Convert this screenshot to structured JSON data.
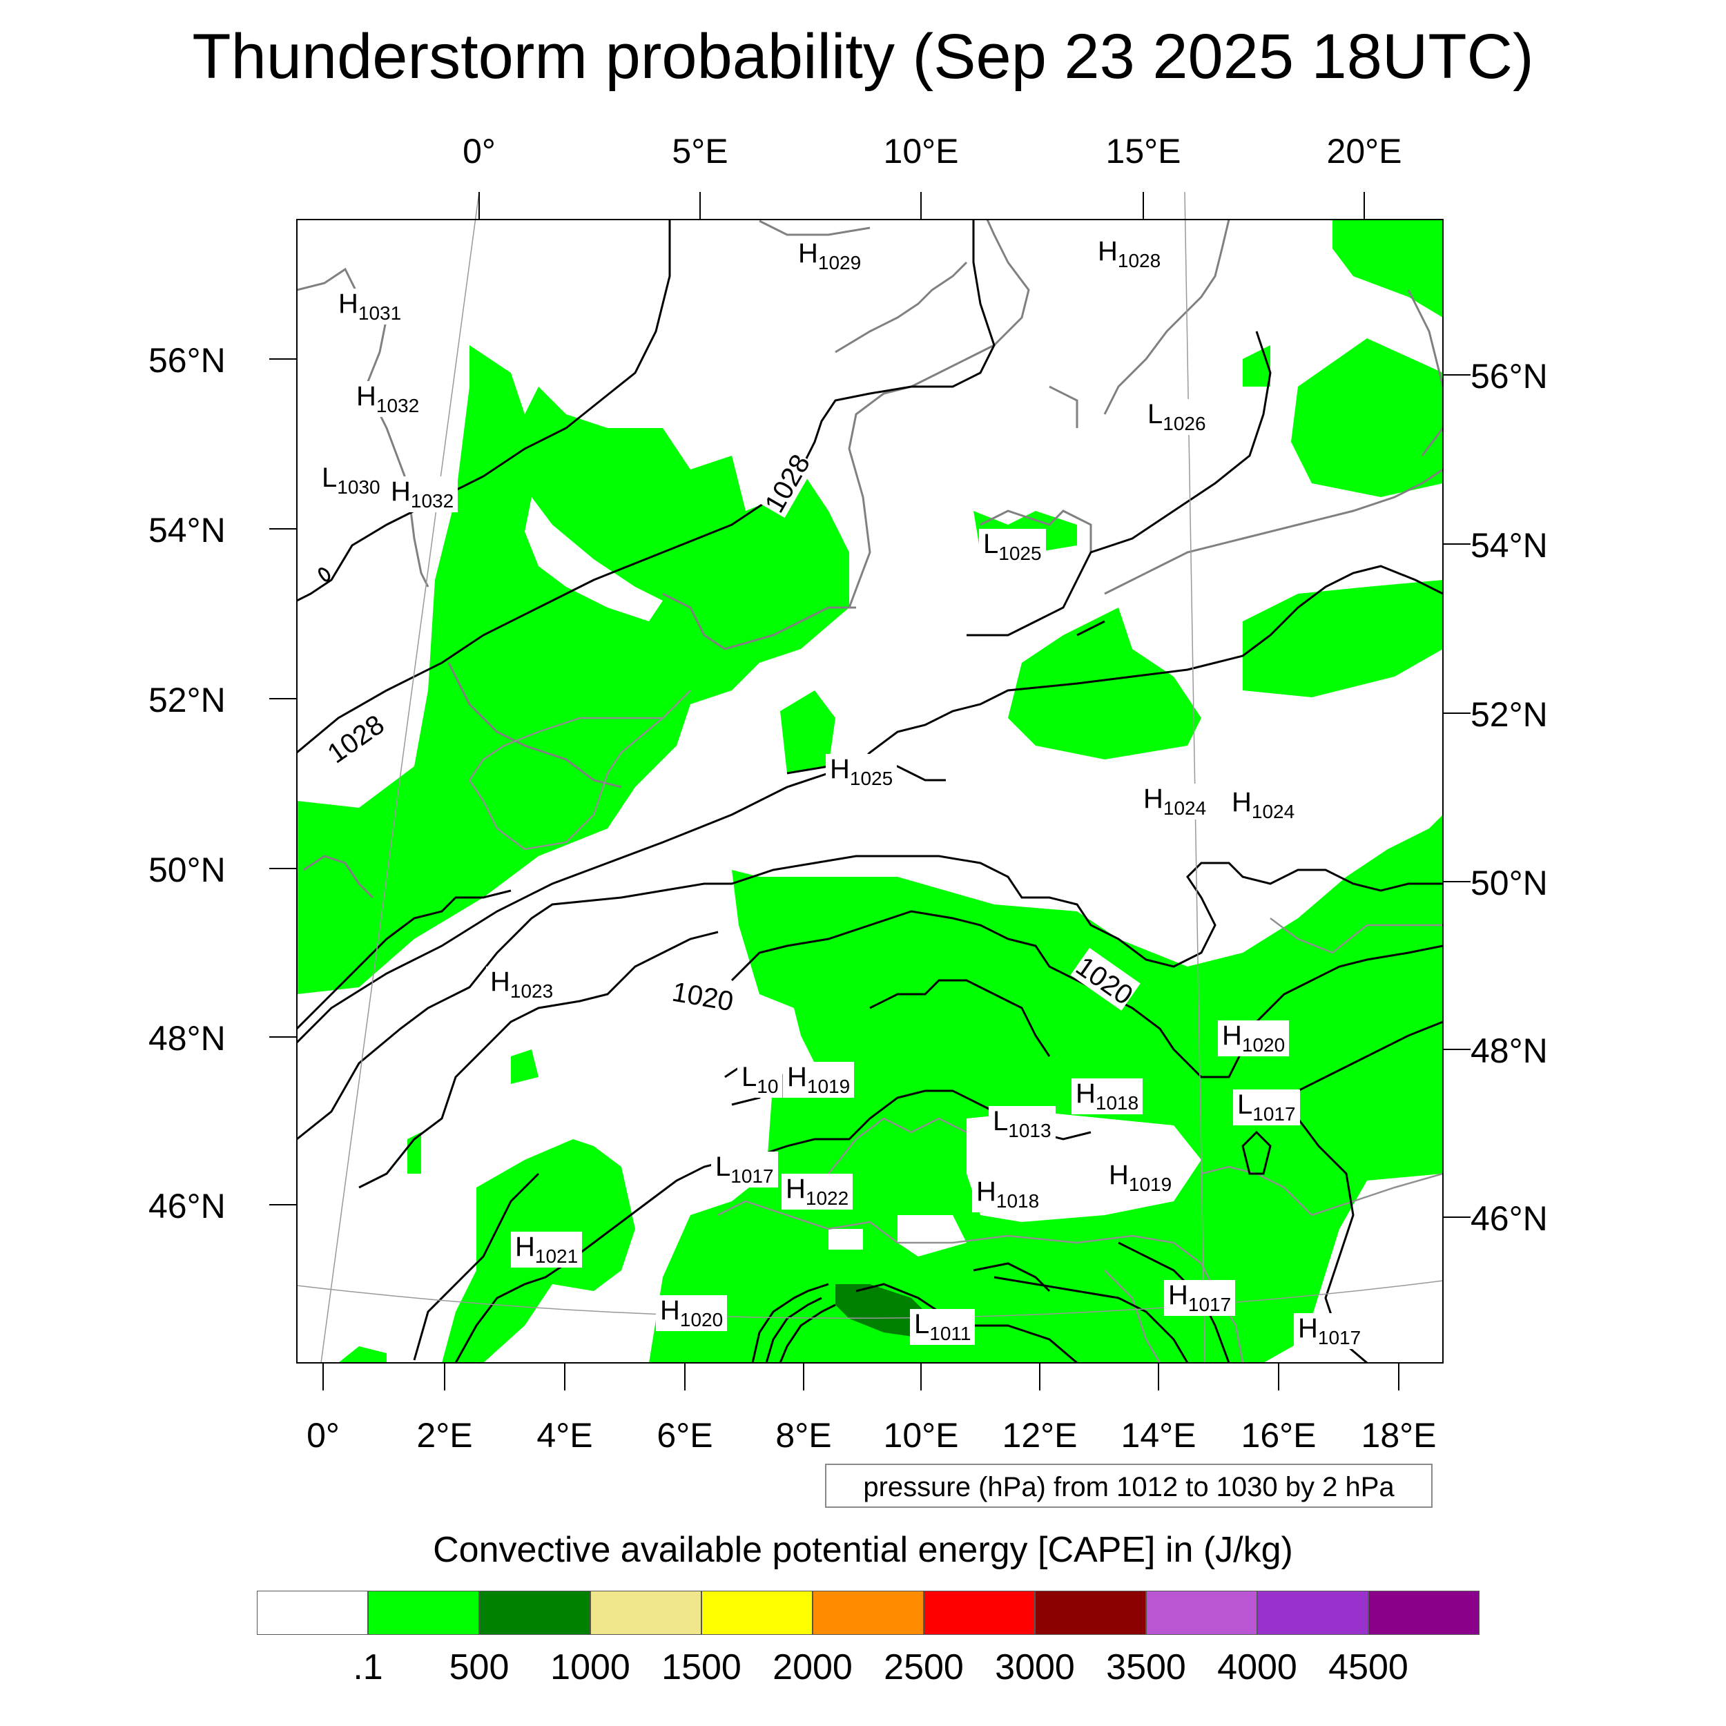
{
  "title": "Thunderstorm probability (Sep 23 2025 18UTC)",
  "top_longitudes": [
    "0°",
    "5°E",
    "10°E",
    "15°E",
    "20°E"
  ],
  "bottom_longitudes": [
    "0°",
    "2°E",
    "4°E",
    "6°E",
    "8°E",
    "10°E",
    "12°E",
    "14°E",
    "16°E",
    "18°E"
  ],
  "left_latitudes": [
    "56°N",
    "54°N",
    "52°N",
    "50°N",
    "48°N",
    "46°N"
  ],
  "right_latitudes": [
    "56°N",
    "54°N",
    "52°N",
    "50°N",
    "48°N",
    "46°N"
  ],
  "isobar_labels": [
    "1028",
    "1028",
    "1020",
    "1020"
  ],
  "pressure_centers": [
    {
      "type": "H",
      "value": "1031"
    },
    {
      "type": "H",
      "value": "1032"
    },
    {
      "type": "L",
      "value": "1030"
    },
    {
      "type": "H",
      "value": "1032"
    },
    {
      "type": "H",
      "value": "1029"
    },
    {
      "type": "H",
      "value": "1028"
    },
    {
      "type": "L",
      "value": "1026"
    },
    {
      "type": "L",
      "value": "1025"
    },
    {
      "type": "H",
      "value": "1025"
    },
    {
      "type": "H",
      "value": "1024"
    },
    {
      "type": "H",
      "value": "1024"
    },
    {
      "type": "H",
      "value": "1023"
    },
    {
      "type": "H",
      "value": "1020"
    },
    {
      "type": "L",
      "value": "10"
    },
    {
      "type": "H",
      "value": "1019"
    },
    {
      "type": "H",
      "value": "1018"
    },
    {
      "type": "L",
      "value": "1017"
    },
    {
      "type": "L",
      "value": "1013"
    },
    {
      "type": "L",
      "value": "1017"
    },
    {
      "type": "H",
      "value": "1022"
    },
    {
      "type": "H",
      "value": "1018"
    },
    {
      "type": "H",
      "value": "1019"
    },
    {
      "type": "H",
      "value": "1021"
    },
    {
      "type": "H",
      "value": "1020"
    },
    {
      "type": "L",
      "value": "1011"
    },
    {
      "type": "H",
      "value": "1017"
    },
    {
      "type": "H",
      "value": "1017"
    }
  ],
  "pressure_note": "pressure (hPa) from 1012 to 1030 by 2 hPa",
  "legend": {
    "title": "Convective available potential energy [CAPE] in (J/kg)",
    "colors": [
      "#ffffff",
      "#00ff00",
      "#008000",
      "#f0e68c",
      "#ffff00",
      "#ff8c00",
      "#ff0000",
      "#8b0000",
      "#ba55d3",
      "#9932cc",
      "#8b008b"
    ],
    "labels": [
      ".1",
      "500",
      "1000",
      "1500",
      "2000",
      "2500",
      "3000",
      "3500",
      "4000",
      "4500"
    ]
  }
}
